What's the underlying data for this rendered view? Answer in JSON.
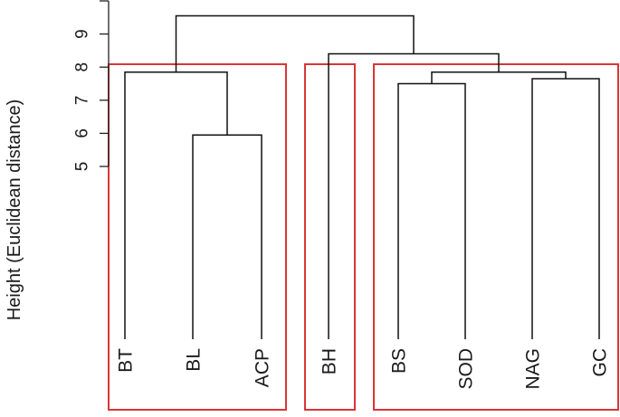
{
  "chart_data": {
    "type": "dendrogram",
    "ylabel": "Height (Euclidean distance)",
    "y_ticks": [
      5,
      6,
      7,
      8,
      9
    ],
    "ylim": [
      0,
      10
    ],
    "leaves": [
      "BT",
      "BL",
      "ACP",
      "BH",
      "BS",
      "SOD",
      "NAG",
      "GC"
    ],
    "merges": [
      {
        "children": [
          "BL",
          "ACP"
        ],
        "height": 5.95
      },
      {
        "children": [
          "BS",
          "SOD"
        ],
        "height": 7.5
      },
      {
        "children": [
          "NAG",
          "GC"
        ],
        "height": 7.65
      },
      {
        "children": [
          "BT",
          "BL+ACP"
        ],
        "height": 7.85
      },
      {
        "children": [
          "BS+SOD",
          "NAG+GC"
        ],
        "height": 7.85
      },
      {
        "children": [
          "BH",
          "BS+SOD+NAG+GC"
        ],
        "height": 8.4
      },
      {
        "children": [
          "BT+BL+ACP",
          "BH+BS+SOD+NAG+GC"
        ],
        "height": 9.55
      }
    ],
    "clusters": [
      [
        "BT",
        "BL",
        "ACP"
      ],
      [
        "BH"
      ],
      [
        "BS",
        "SOD",
        "NAG",
        "GC"
      ]
    ],
    "cluster_box_color": "#d93636",
    "branch_color": "#111111"
  }
}
